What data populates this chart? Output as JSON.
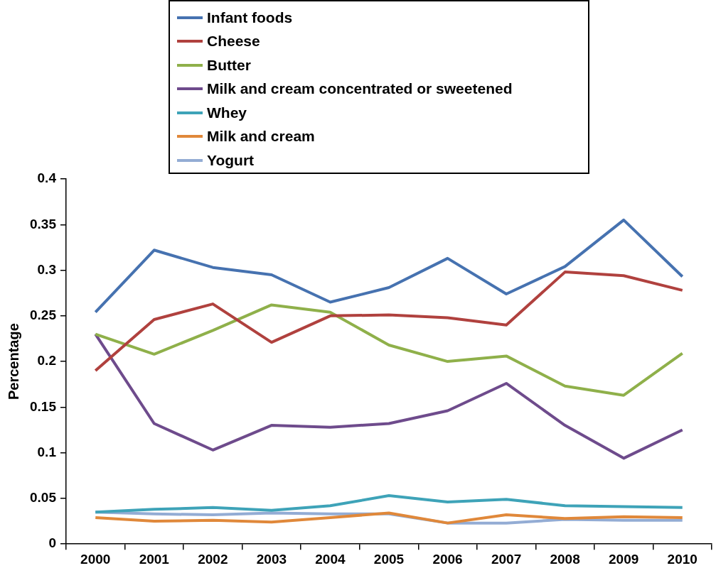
{
  "chart_data": {
    "type": "line",
    "ylabel": "Percentage",
    "categories": [
      "2000",
      "2001",
      "2002",
      "2003",
      "2004",
      "2005",
      "2006",
      "2007",
      "2008",
      "2009",
      "2010"
    ],
    "series": [
      {
        "name": "Infant foods",
        "color": "#4672b0",
        "values": [
          0.254,
          0.322,
          0.303,
          0.295,
          0.265,
          0.281,
          0.313,
          0.274,
          0.304,
          0.355,
          0.293
        ]
      },
      {
        "name": "Cheese",
        "color": "#b0413e",
        "values": [
          0.19,
          0.246,
          0.263,
          0.221,
          0.25,
          0.251,
          0.248,
          0.24,
          0.298,
          0.294,
          0.278
        ]
      },
      {
        "name": "Butter",
        "color": "#8fb04a",
        "values": [
          0.23,
          0.208,
          0.234,
          0.262,
          0.254,
          0.218,
          0.2,
          0.206,
          0.173,
          0.163,
          0.209
        ]
      },
      {
        "name": "Milk and cream concentrated or sweetened",
        "color": "#6e4b8c",
        "values": [
          0.23,
          0.132,
          0.103,
          0.13,
          0.128,
          0.132,
          0.146,
          0.176,
          0.13,
          0.094,
          0.125
        ]
      },
      {
        "name": "Whey",
        "color": "#3ea3b8",
        "values": [
          0.035,
          0.038,
          0.04,
          0.037,
          0.042,
          0.053,
          0.046,
          0.049,
          0.042,
          0.041,
          0.04
        ]
      },
      {
        "name": "Milk and cream",
        "color": "#e0883a",
        "values": [
          0.029,
          0.025,
          0.026,
          0.024,
          0.029,
          0.034,
          0.023,
          0.032,
          0.028,
          0.03,
          0.029
        ]
      },
      {
        "name": "Yogurt",
        "color": "#93acd4",
        "values": [
          0.035,
          0.033,
          0.032,
          0.034,
          0.033,
          0.033,
          0.023,
          0.023,
          0.027,
          0.026,
          0.026
        ]
      }
    ],
    "ylim": [
      0,
      0.4
    ],
    "yticks": [
      0,
      0.05,
      0.1,
      0.15,
      0.2,
      0.25,
      0.3,
      0.35,
      0.4
    ],
    "grid": false,
    "legend": "top",
    "marker": "none",
    "line_style": "solid"
  }
}
